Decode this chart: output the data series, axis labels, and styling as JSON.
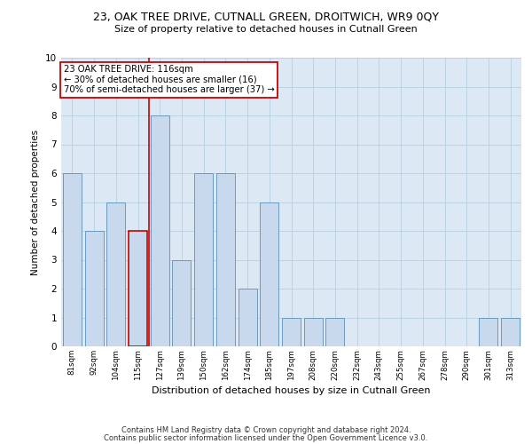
{
  "title1": "23, OAK TREE DRIVE, CUTNALL GREEN, DROITWICH, WR9 0QY",
  "title2": "Size of property relative to detached houses in Cutnall Green",
  "xlabel": "Distribution of detached houses by size in Cutnall Green",
  "ylabel": "Number of detached properties",
  "footer1": "Contains HM Land Registry data © Crown copyright and database right 2024.",
  "footer2": "Contains public sector information licensed under the Open Government Licence v3.0.",
  "categories": [
    "81sqm",
    "92sqm",
    "104sqm",
    "115sqm",
    "127sqm",
    "139sqm",
    "150sqm",
    "162sqm",
    "174sqm",
    "185sqm",
    "197sqm",
    "208sqm",
    "220sqm",
    "232sqm",
    "243sqm",
    "255sqm",
    "267sqm",
    "278sqm",
    "290sqm",
    "301sqm",
    "313sqm"
  ],
  "values": [
    6,
    4,
    5,
    4,
    8,
    3,
    6,
    6,
    2,
    5,
    1,
    1,
    1,
    0,
    0,
    0,
    0,
    0,
    0,
    1,
    1
  ],
  "bar_color": "#c9d9ed",
  "bar_edge_color": "#6a9abf",
  "highlight_index": 3,
  "highlight_color": "#c9d9ed",
  "highlight_edge_color": "#cc0000",
  "annotation_box_text": "23 OAK TREE DRIVE: 116sqm\n← 30% of detached houses are smaller (16)\n70% of semi-detached houses are larger (37) →",
  "annotation_box_edge_color": "#cc0000",
  "ylim": [
    0,
    10
  ],
  "yticks": [
    0,
    1,
    2,
    3,
    4,
    5,
    6,
    7,
    8,
    9,
    10
  ],
  "grid_color": "#b8cfe0",
  "plot_bg_color": "#dce9f5",
  "fig_bg_color": "#ffffff"
}
